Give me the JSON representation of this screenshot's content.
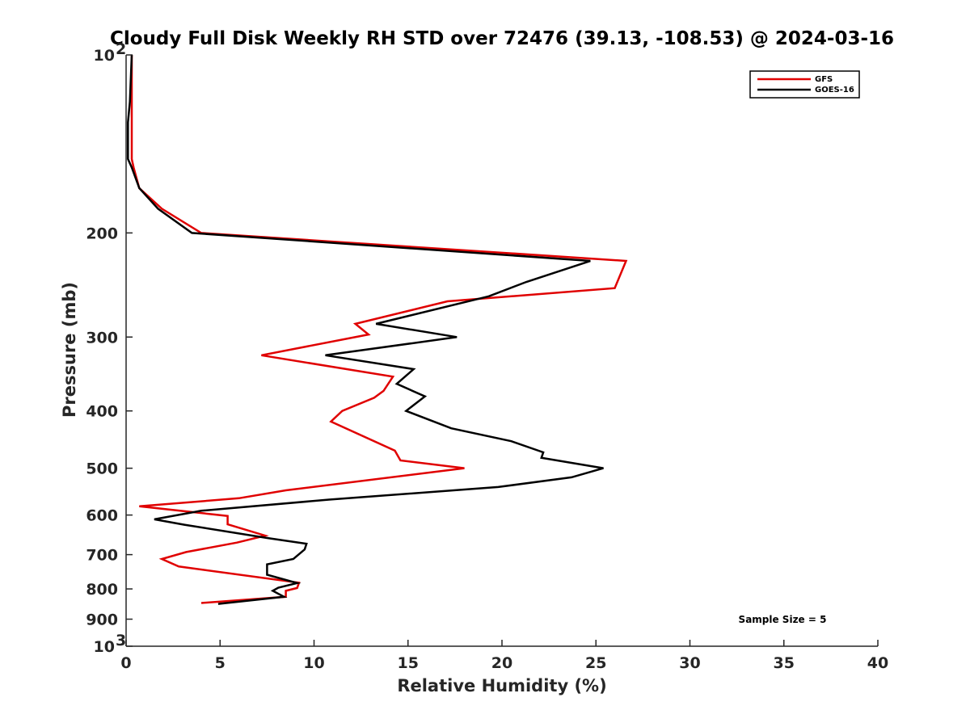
{
  "chart_data": {
    "type": "line",
    "title": "Cloudy Full Disk Weekly RH STD over 72476 (39.13, -108.53) @ 2024-03-16",
    "xlabel": "Relative Humidity (%)",
    "ylabel": "Pressure (mb)",
    "xlim": [
      0,
      40
    ],
    "ylim": [
      1000,
      100
    ],
    "y_scale": "log",
    "y_reversed": true,
    "x_ticks": [
      "0",
      "5",
      "10",
      "15",
      "20",
      "25",
      "30",
      "35",
      "40"
    ],
    "y_ticks": [
      {
        "value": 100,
        "label": "10",
        "sup": "2"
      },
      {
        "value": 200,
        "label": "200"
      },
      {
        "value": 300,
        "label": "300"
      },
      {
        "value": 400,
        "label": "400"
      },
      {
        "value": 500,
        "label": "500"
      },
      {
        "value": 600,
        "label": "600"
      },
      {
        "value": 700,
        "label": "700"
      },
      {
        "value": 800,
        "label": "800"
      },
      {
        "value": 900,
        "label": "900"
      },
      {
        "value": 1000,
        "label": "10",
        "sup": "3"
      }
    ],
    "grid": false,
    "legend_position": "top-right",
    "series": [
      {
        "name": "GFS",
        "color": "#e00000",
        "points": [
          [
            0.3,
            100
          ],
          [
            0.3,
            120
          ],
          [
            0.3,
            130
          ],
          [
            0.3,
            150
          ],
          [
            0.4,
            155
          ],
          [
            0.7,
            168
          ],
          [
            1.9,
            182
          ],
          [
            4.0,
            200
          ],
          [
            26.6,
            223
          ],
          [
            26.0,
            248
          ],
          [
            17.1,
            261
          ],
          [
            12.2,
            285
          ],
          [
            12.9,
            297
          ],
          [
            7.2,
            322
          ],
          [
            14.2,
            350
          ],
          [
            13.7,
            370
          ],
          [
            13.2,
            380
          ],
          [
            11.5,
            400
          ],
          [
            10.9,
            417
          ],
          [
            14.3,
            467
          ],
          [
            14.6,
            485
          ],
          [
            18.0,
            500
          ],
          [
            8.5,
            545
          ],
          [
            6.0,
            562
          ],
          [
            0.7,
            580
          ],
          [
            5.4,
            602
          ],
          [
            5.4,
            622
          ],
          [
            7.4,
            650
          ],
          [
            5.9,
            668
          ],
          [
            3.2,
            693
          ],
          [
            1.9,
            712
          ],
          [
            2.8,
            733
          ],
          [
            9.2,
            781
          ],
          [
            9.1,
            797
          ],
          [
            8.5,
            806
          ],
          [
            8.5,
            825
          ],
          [
            4.0,
            845
          ]
        ]
      },
      {
        "name": "GOES-16",
        "color": "#000000",
        "points": [
          [
            0.3,
            100
          ],
          [
            0.2,
            120
          ],
          [
            0.1,
            130
          ],
          [
            0.1,
            150
          ],
          [
            0.3,
            155
          ],
          [
            0.7,
            168
          ],
          [
            1.7,
            182
          ],
          [
            3.5,
            200
          ],
          [
            24.7,
            223
          ],
          [
            21.3,
            242
          ],
          [
            19.3,
            256
          ],
          [
            13.3,
            285
          ],
          [
            17.6,
            300
          ],
          [
            10.6,
            322
          ],
          [
            15.3,
            340
          ],
          [
            14.4,
            360
          ],
          [
            15.9,
            378
          ],
          [
            14.9,
            400
          ],
          [
            17.3,
            428
          ],
          [
            20.5,
            450
          ],
          [
            22.2,
            470
          ],
          [
            22.1,
            480
          ],
          [
            25.4,
            500
          ],
          [
            23.7,
            518
          ],
          [
            19.8,
            538
          ],
          [
            10.8,
            565
          ],
          [
            4.0,
            590
          ],
          [
            1.5,
            610
          ],
          [
            3.1,
            623
          ],
          [
            7.5,
            656
          ],
          [
            9.6,
            671
          ],
          [
            9.5,
            686
          ],
          [
            8.9,
            712
          ],
          [
            7.5,
            727
          ],
          [
            7.5,
            757
          ],
          [
            9.1,
            782
          ],
          [
            8.1,
            796
          ],
          [
            7.8,
            806
          ],
          [
            8.4,
            825
          ],
          [
            4.9,
            848
          ]
        ]
      }
    ],
    "annotation": "Sample Size = 5"
  }
}
